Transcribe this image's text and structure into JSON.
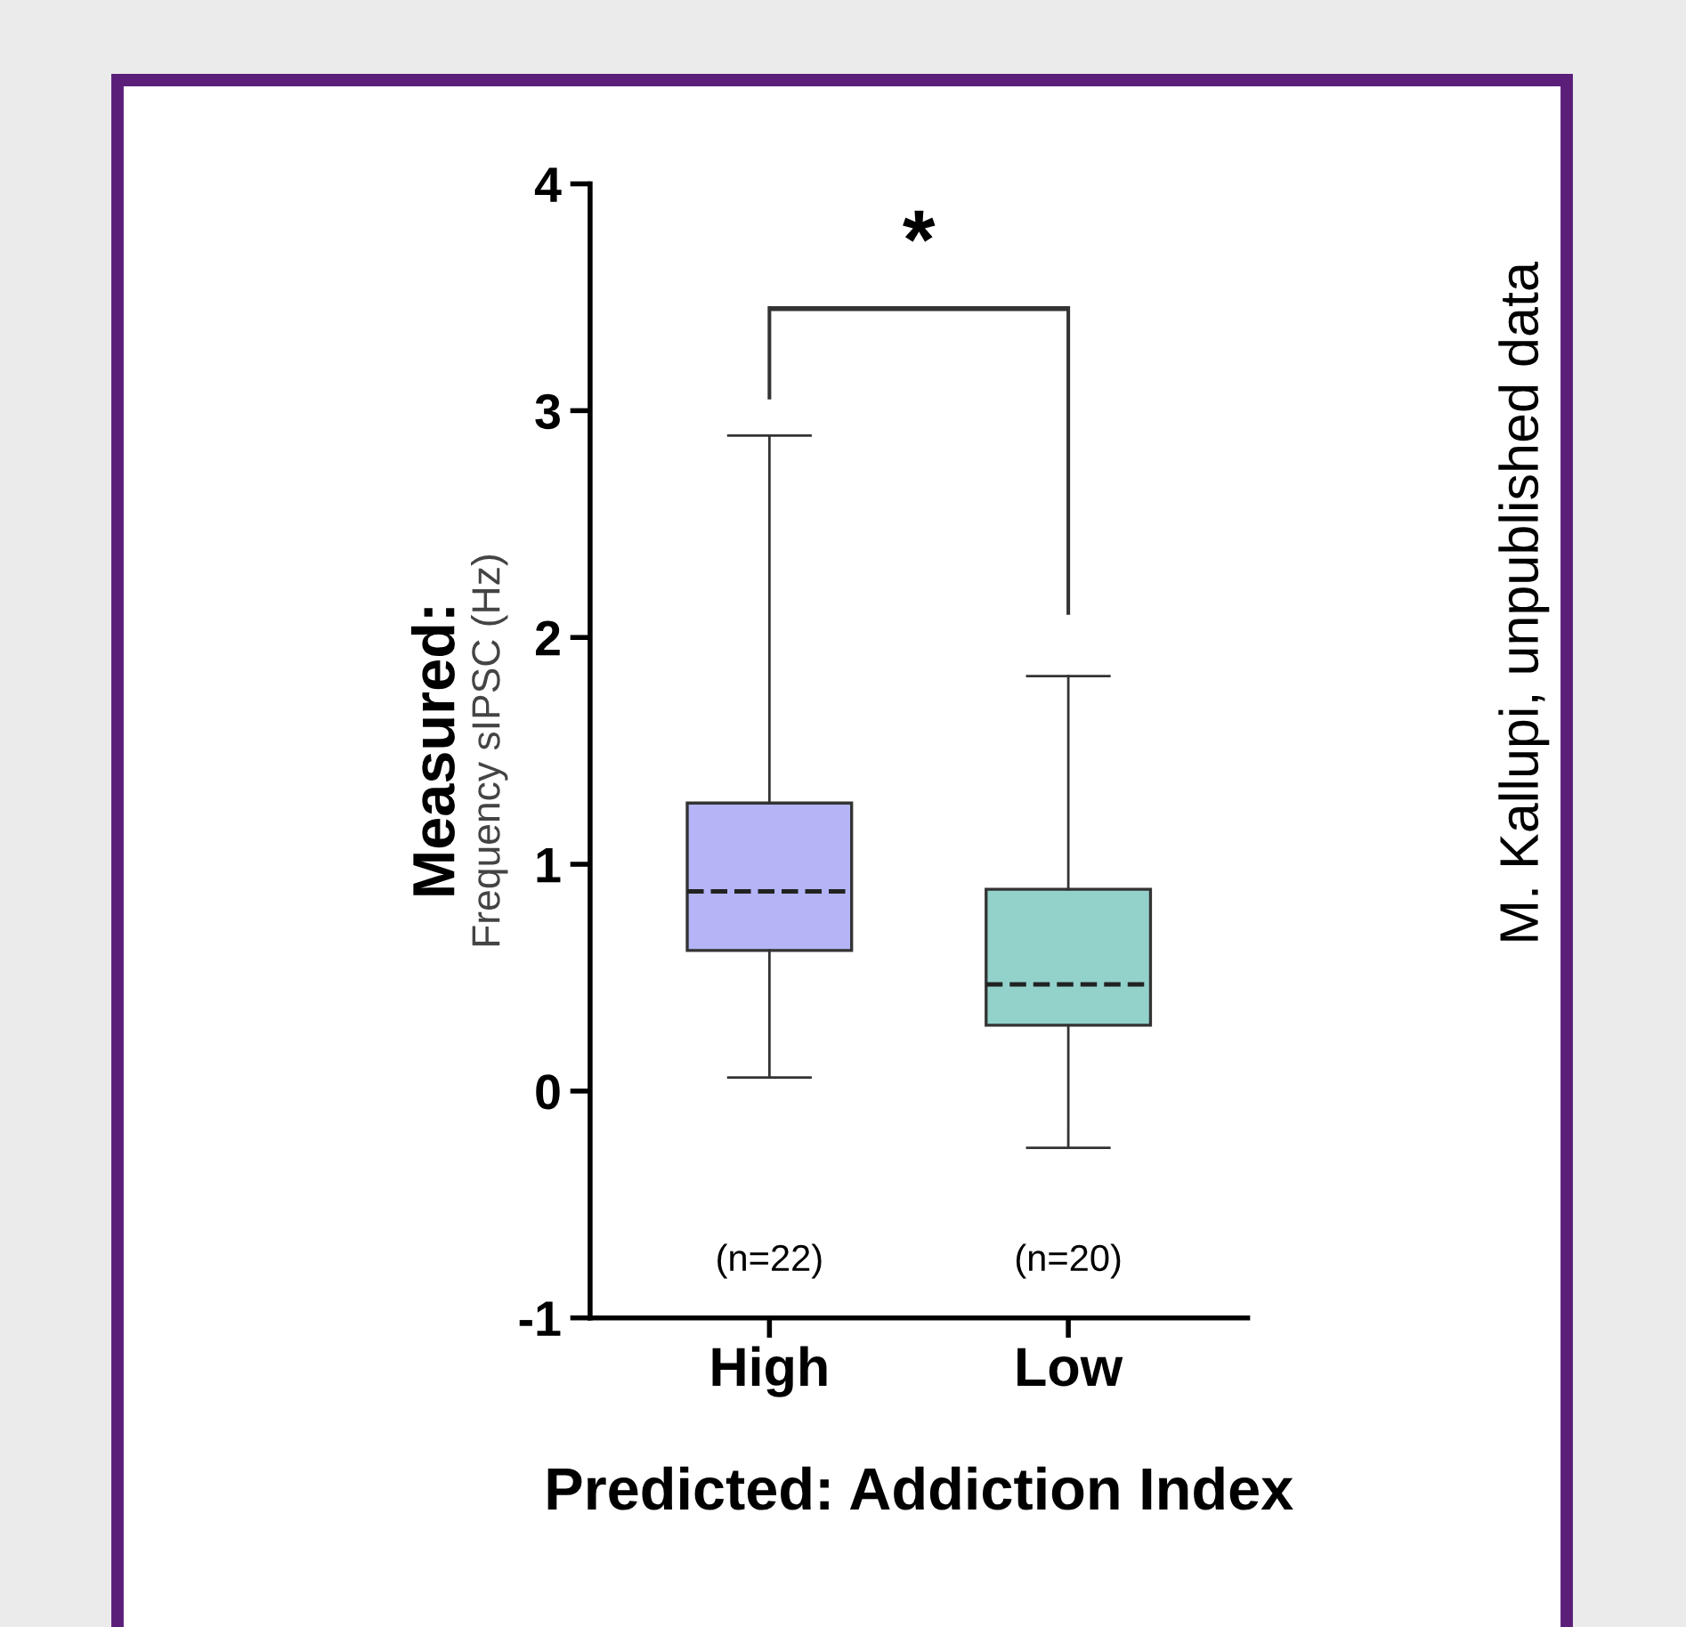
{
  "chart_data": {
    "type": "box",
    "xlabel": "Predicted: Addiction Index",
    "ylabel": "Frequency sIPSC (Hz)",
    "categories": [
      "High",
      "Low"
    ],
    "boxes": [
      {
        "low": 0.06,
        "q1": 0.62,
        "median": 0.88,
        "q3": 1.27,
        "high": 2.89
      },
      {
        "low": -0.25,
        "q1": 0.29,
        "median": 0.47,
        "q3": 0.89,
        "high": 1.83
      }
    ],
    "colors": [
      "#b4b4f6",
      "#93d2cb"
    ],
    "ylim": [
      -1,
      4
    ],
    "yticks": [
      -1,
      0,
      1,
      2,
      3,
      4
    ],
    "grid": false,
    "annotations": [
      "*",
      "Measured:",
      "M. Kallupi, unpublished data",
      "(n=22)",
      "(n=20)"
    ]
  }
}
